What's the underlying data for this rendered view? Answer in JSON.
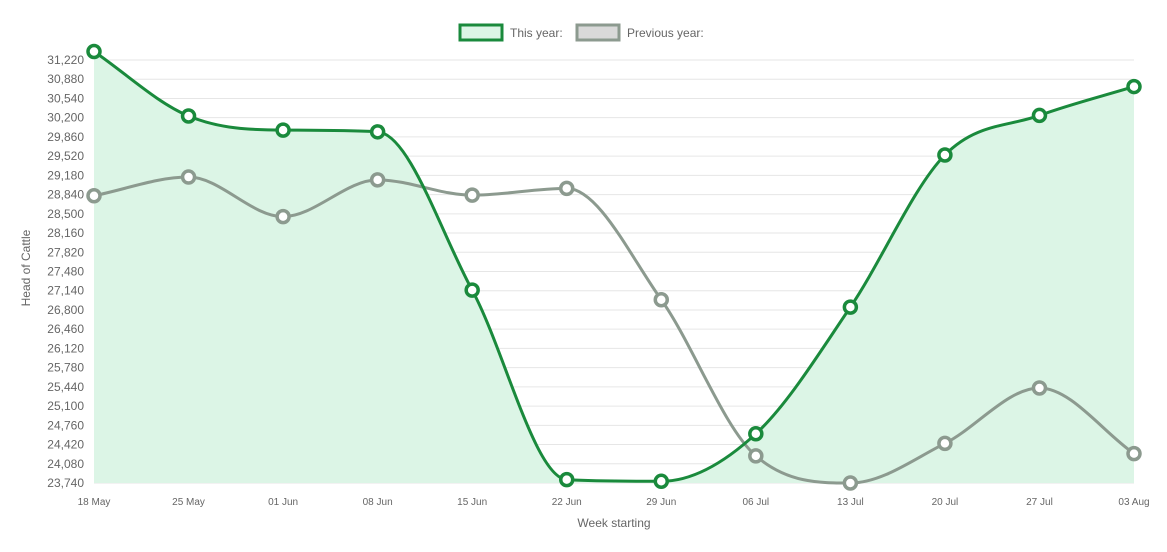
{
  "chart_data": {
    "type": "line",
    "title": "",
    "xlabel": "Week starting",
    "ylabel": "Head of Cattle",
    "legend_position": "top",
    "grid": true,
    "categories": [
      "18 May",
      "25 May",
      "01 Jun",
      "08 Jun",
      "15 Jun",
      "22 Jun",
      "29 Jun",
      "06 Jul",
      "13 Jul",
      "20 Jul",
      "27 Jul",
      "03 Aug"
    ],
    "yticks": [
      "23,740",
      "24,080",
      "24,420",
      "24,760",
      "25,100",
      "25,440",
      "25,780",
      "26,120",
      "26,460",
      "26,800",
      "27,140",
      "27,480",
      "27,820",
      "28,160",
      "28,500",
      "28,840",
      "29,180",
      "29,520",
      "29,860",
      "30,200",
      "30,540",
      "30,880",
      "31,220"
    ],
    "ylim": [
      23740,
      31220
    ],
    "series": [
      {
        "name": "This year:",
        "color": "#1a8a3c",
        "fill": "#dcf5e6",
        "filled": true,
        "values": [
          31370,
          30230,
          29980,
          29950,
          27150,
          23800,
          23770,
          24610,
          26850,
          29540,
          30240,
          30750
        ]
      },
      {
        "name": "Previous year:",
        "color": "#8c9a8f",
        "fill": "#d9d9d9",
        "filled": false,
        "values": [
          28820,
          29150,
          28450,
          29100,
          28830,
          28950,
          26980,
          24220,
          23740,
          24440,
          25420,
          24260
        ]
      }
    ]
  }
}
